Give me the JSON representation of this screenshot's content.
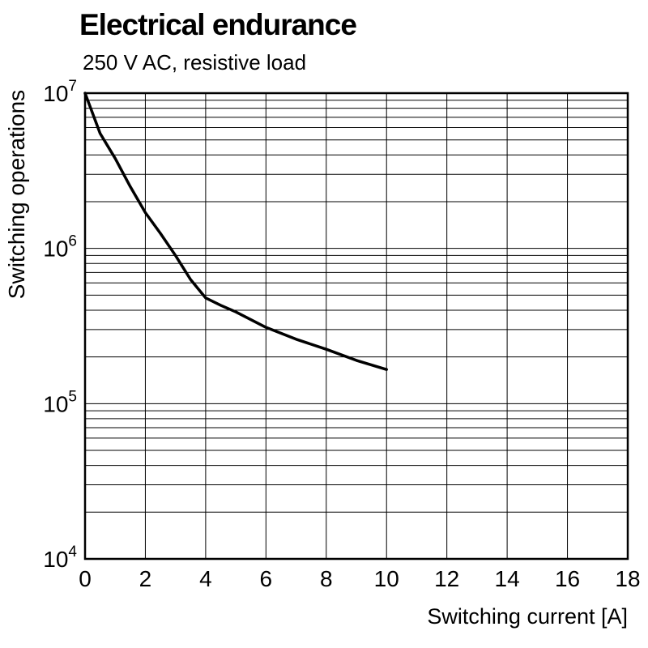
{
  "title": "Electrical endurance",
  "subtitle": "250 V AC, resistive load",
  "chart_data": {
    "type": "line",
    "title": "Electrical endurance",
    "subtitle": "250 V AC, resistive load",
    "xlabel": "Switching current [A]",
    "ylabel": "Switching operations",
    "x_unit": "A",
    "xlim": [
      0,
      18
    ],
    "x_ticks": [
      0,
      2,
      4,
      6,
      8,
      10,
      12,
      14,
      16,
      18
    ],
    "y_scale": "log",
    "ylim_exp": [
      4,
      7
    ],
    "y_tick_exponents": [
      7,
      6,
      5,
      4
    ],
    "grid": "on",
    "legend": "none",
    "line_color": "#000000",
    "series": [
      {
        "name": "electrical-endurance-curve",
        "x": [
          0,
          0.5,
          1,
          1.5,
          2,
          2.5,
          3,
          3.5,
          4,
          4.5,
          5,
          6,
          7,
          8,
          9,
          10
        ],
        "y": [
          10000000,
          5500000,
          3800000,
          2500000,
          1700000,
          1250000,
          900000,
          630000,
          480000,
          430000,
          390000,
          310000,
          260000,
          224000,
          190000,
          166000
        ]
      }
    ]
  }
}
